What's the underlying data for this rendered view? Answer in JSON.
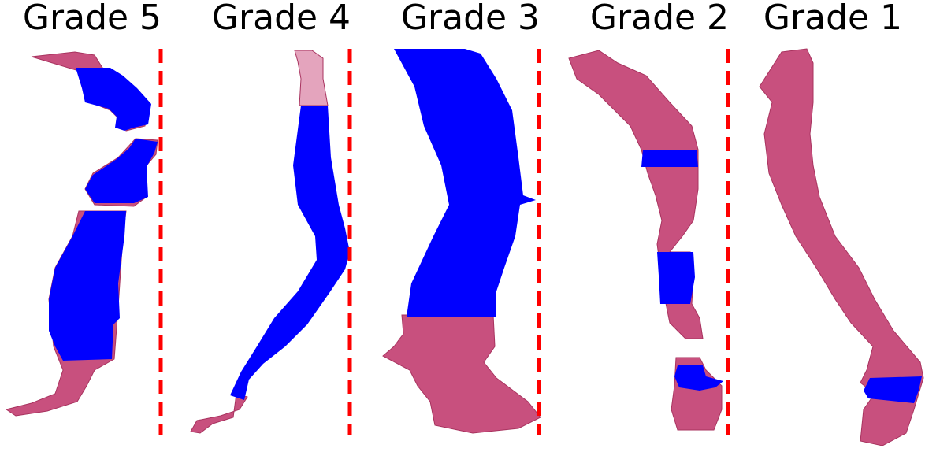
{
  "figure": {
    "panels": [
      {
        "title": "Grade 5",
        "has_divider": true
      },
      {
        "title": "Grade 4",
        "has_divider": true
      },
      {
        "title": "Grade 3",
        "has_divider": true
      },
      {
        "title": "Grade 2",
        "has_divider": true
      },
      {
        "title": "Grade 1",
        "has_divider": false
      }
    ],
    "colors": {
      "tissue_fill": "#c8507e",
      "tissue_light": "#e4a4bd",
      "tissue_dark": "#a8335f",
      "annotation_fill": "#0000ff",
      "divider": "#ff0000",
      "title_text": "#000000",
      "background": "#ffffff"
    }
  }
}
